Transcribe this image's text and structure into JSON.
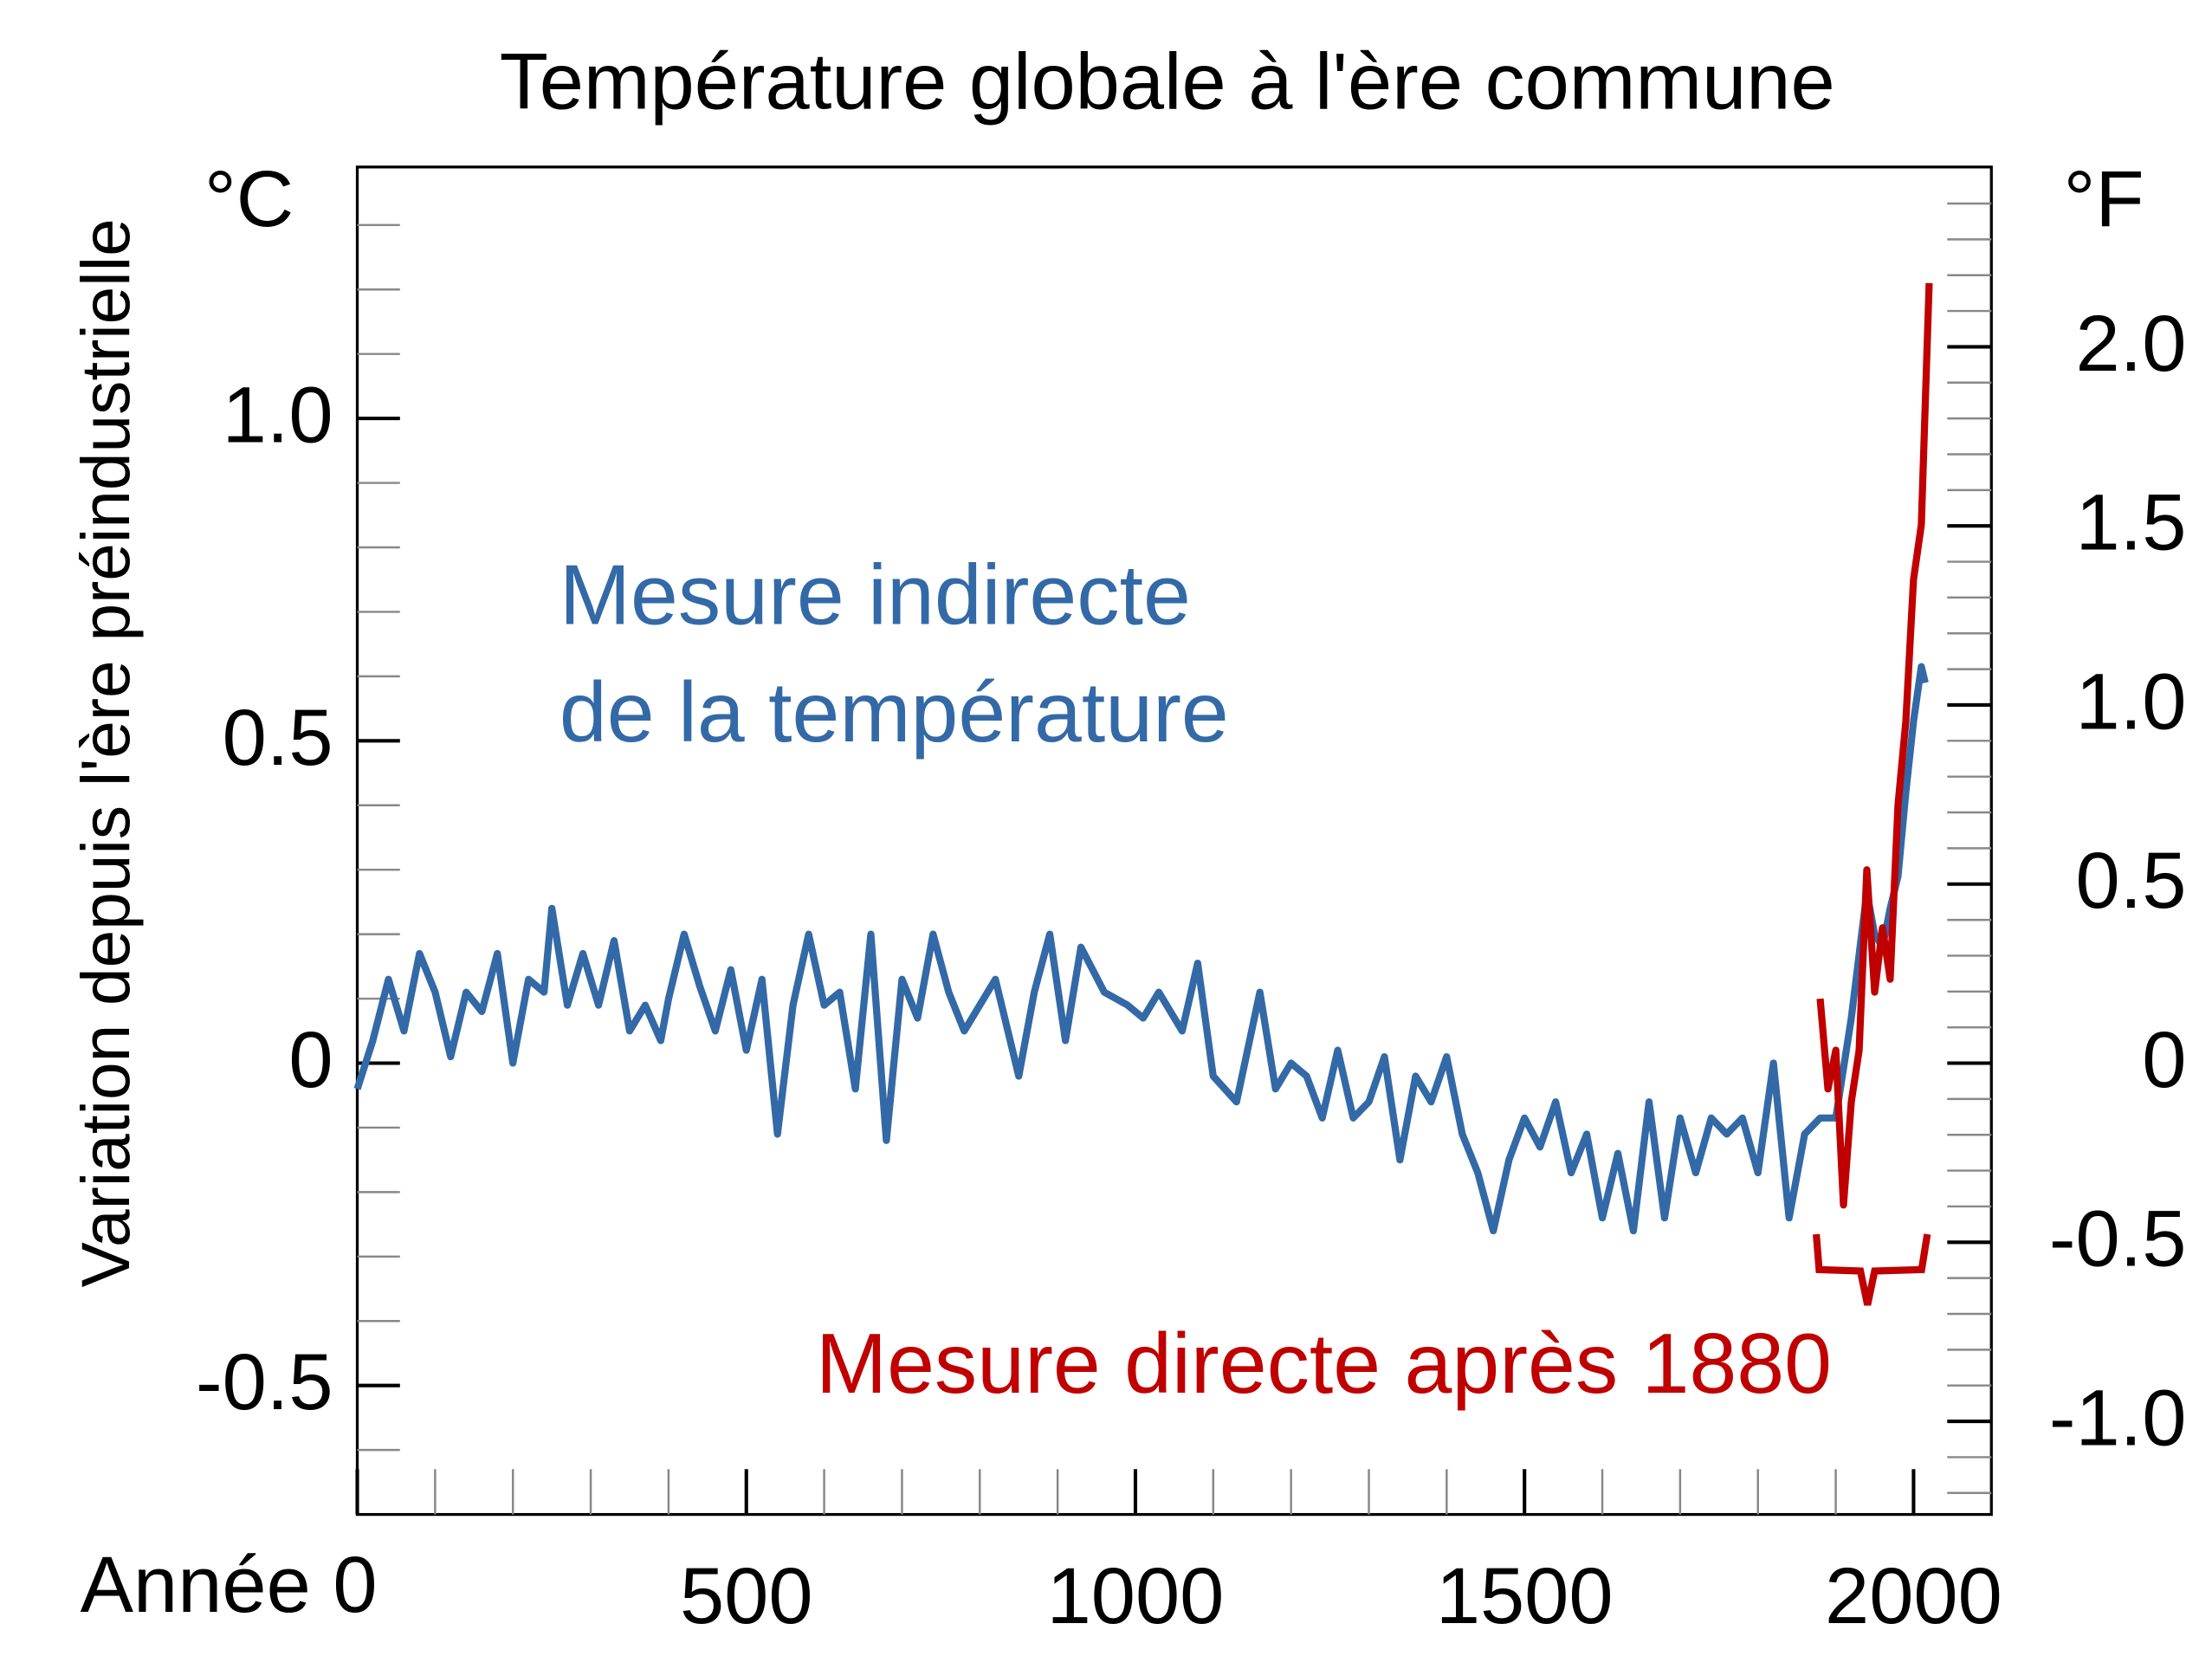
{
  "chart_data": {
    "type": "line",
    "title": "Température globale à l'ère commune",
    "y_label": "Variation depuis l'ère préindustrielle",
    "y_unit": "°C",
    "y2_unit": "°F",
    "xlim": [
      0,
      2100
    ],
    "xticks": [
      {
        "value": 0,
        "label": "Année 0"
      },
      500,
      1000,
      1500,
      2000
    ],
    "xticks_minor": [
      100,
      200,
      300,
      400,
      600,
      700,
      800,
      900,
      1100,
      1200,
      1300,
      1400,
      1600,
      1700,
      1800,
      1900
    ],
    "ylim": [
      -0.7,
      1.39
    ],
    "yticks": [
      -0.5,
      0,
      0.5,
      {
        "value": 1,
        "label": "1.0"
      }
    ],
    "yticks_minor": [
      -0.6,
      -0.4,
      -0.3,
      -0.2,
      -0.1,
      0.1,
      0.2,
      0.3,
      0.4,
      0.6,
      0.7,
      0.8,
      0.9,
      1.1,
      1.2,
      1.3
    ],
    "y2lim": [
      -1.26,
      2.502
    ],
    "y2ticks": [
      {
        "value": -1,
        "label": "-1.0"
      },
      -0.5,
      0,
      0.5,
      {
        "value": 1,
        "label": "1.0"
      },
      1.5,
      {
        "value": 2,
        "label": "2.0"
      }
    ],
    "y2ticks_minor": [
      -1.2,
      -1.1,
      -0.9,
      -0.8,
      -0.7,
      -0.6,
      -0.4,
      -0.3,
      -0.2,
      -0.1,
      0.1,
      0.2,
      0.3,
      0.4,
      0.6,
      0.7,
      0.8,
      0.9,
      1.1,
      1.2,
      1.3,
      1.4,
      1.6,
      1.7,
      1.8,
      1.9,
      2.1,
      2.2,
      2.3,
      2.4
    ],
    "series": [
      {
        "color": "#3369a6",
        "x": [
          0,
          20,
          40,
          60,
          80,
          100,
          120,
          140,
          160,
          180,
          200,
          220,
          240,
          250,
          270,
          290,
          310,
          330,
          350,
          370,
          390,
          400,
          420,
          440,
          460,
          480,
          500,
          520,
          540,
          560,
          580,
          600,
          620,
          640,
          660,
          680,
          700,
          720,
          740,
          760,
          780,
          800,
          820,
          850,
          870,
          890,
          910,
          930,
          960,
          990,
          1010,
          1030,
          1060,
          1080,
          1100,
          1130,
          1160,
          1180,
          1200,
          1220,
          1240,
          1260,
          1280,
          1300,
          1320,
          1340,
          1360,
          1380,
          1400,
          1420,
          1440,
          1460,
          1480,
          1500,
          1520,
          1540,
          1560,
          1580,
          1600,
          1620,
          1640,
          1660,
          1680,
          1700,
          1720,
          1740,
          1760,
          1780,
          1800,
          1820,
          1840,
          1860,
          1880,
          1900,
          1920,
          1940,
          1950,
          1960,
          1970,
          1980,
          1990,
          2000,
          2010,
          2015
        ],
        "values": [
          -0.04,
          0.035,
          0.13,
          0.05,
          0.17,
          0.11,
          0.01,
          0.11,
          0.08,
          0.17,
          0.0,
          0.13,
          0.11,
          0.24,
          0.09,
          0.17,
          0.09,
          0.19,
          0.05,
          0.09,
          0.035,
          0.1,
          0.2,
          0.12,
          0.05,
          0.145,
          0.02,
          0.13,
          -0.11,
          0.09,
          0.2,
          0.09,
          0.11,
          -0.04,
          0.2,
          -0.12,
          0.13,
          0.07,
          0.2,
          0.11,
          0.05,
          0.09,
          0.13,
          -0.02,
          0.11,
          0.2,
          0.035,
          0.18,
          0.11,
          0.09,
          0.07,
          0.11,
          0.05,
          0.155,
          -0.02,
          -0.06,
          0.11,
          -0.04,
          0.0,
          -0.02,
          -0.085,
          0.02,
          -0.085,
          -0.06,
          0.01,
          -0.15,
          -0.02,
          -0.06,
          0.01,
          -0.11,
          -0.17,
          -0.26,
          -0.15,
          -0.085,
          -0.13,
          -0.06,
          -0.17,
          -0.11,
          -0.24,
          -0.14,
          -0.26,
          -0.06,
          -0.24,
          -0.085,
          -0.17,
          -0.085,
          -0.11,
          -0.085,
          -0.17,
          0.0,
          -0.24,
          -0.11,
          -0.085,
          -0.085,
          0.07,
          0.265,
          0.2,
          0.18,
          0.24,
          0.29,
          0.42,
          0.53,
          0.615,
          0.59
        ]
      },
      {
        "color": "#c00000",
        "x": [
          1880,
          1890,
          1900,
          1910,
          1920,
          1930,
          1940,
          1950,
          1960,
          1970,
          1980,
          1990,
          2000,
          2010,
          2020
        ],
        "values": [
          0.1,
          -0.04,
          0.02,
          -0.22,
          -0.06,
          0.02,
          0.3,
          0.11,
          0.21,
          0.13,
          0.4,
          0.53,
          0.75,
          0.835,
          1.21
        ]
      }
    ],
    "annotations": [
      {
        "lines": [
          "Mesure indirecte",
          "de la température"
        ],
        "color": "#3369a6"
      },
      {
        "lines": [
          "Mesure directe après 1880"
        ],
        "color": "#c00000"
      }
    ]
  }
}
